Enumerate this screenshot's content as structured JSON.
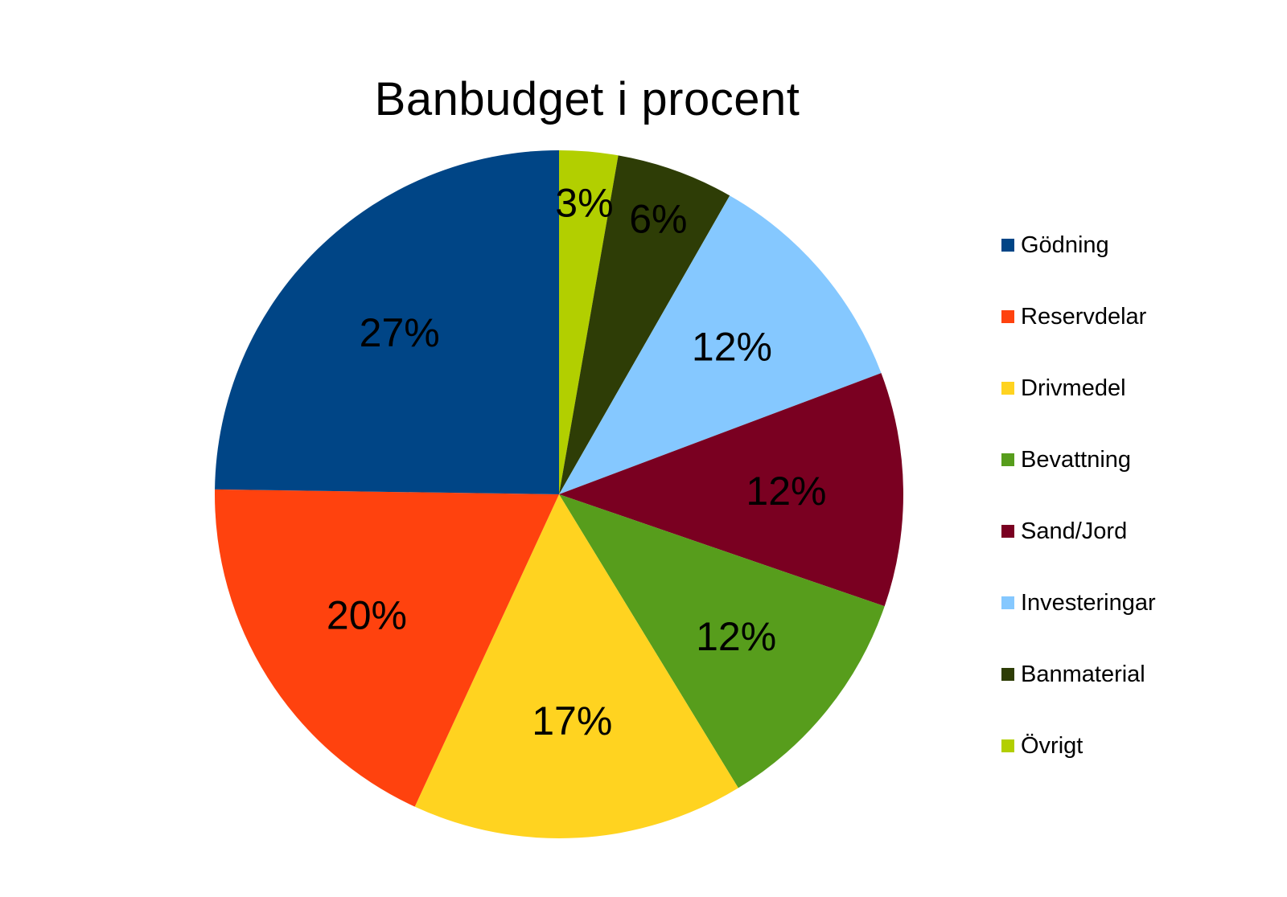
{
  "chart_data": {
    "type": "pie",
    "title": "Banbudget i procent",
    "start_angle_deg": 0,
    "direction": "clockwise",
    "legend_position": "right",
    "slices": [
      {
        "label": "Övrigt",
        "value": 3,
        "display": "3%",
        "color": "#b2cf00"
      },
      {
        "label": "Banmaterial",
        "value": 6,
        "display": "6%",
        "color": "#2e3d06"
      },
      {
        "label": "Investeringar",
        "value": 12,
        "display": "12%",
        "color": "#85c8ff"
      },
      {
        "label": "Sand/Jord",
        "value": 12,
        "display": "12%",
        "color": "#7a0021"
      },
      {
        "label": "Bevattning",
        "value": 12,
        "display": "12%",
        "color": "#579d1c"
      },
      {
        "label": "Drivmedel",
        "value": 17,
        "display": "17%",
        "color": "#ffd320"
      },
      {
        "label": "Reservdelar",
        "value": 20,
        "display": "20%",
        "color": "#ff420e"
      },
      {
        "label": "Gödning",
        "value": 27,
        "display": "27%",
        "color": "#004586"
      }
    ],
    "legend_order": [
      "Gödning",
      "Reservdelar",
      "Drivmedel",
      "Bevattning",
      "Sand/Jord",
      "Investeringar",
      "Banmaterial",
      "Övrigt"
    ]
  }
}
